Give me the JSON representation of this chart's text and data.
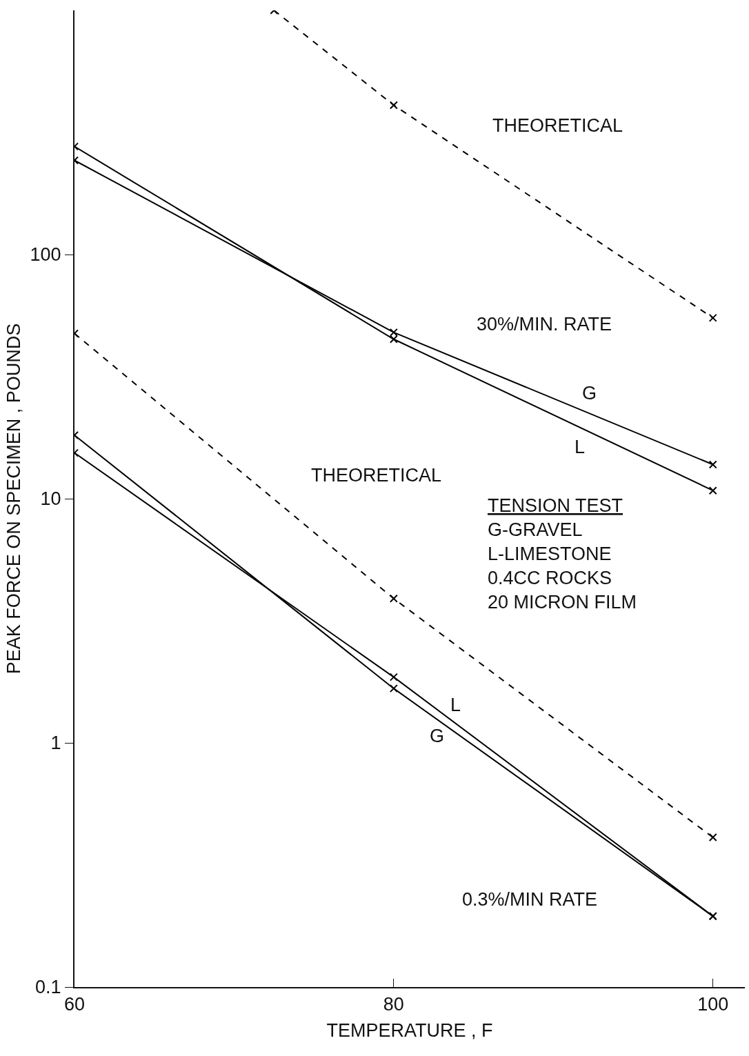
{
  "chart_data": {
    "type": "line",
    "xlabel": "TEMPERATURE , F",
    "ylabel": "PEAK FORCE ON SPECIMEN , POUNDS",
    "xlim": [
      60,
      102
    ],
    "xticks": [
      60,
      80,
      100
    ],
    "ylim": [
      0.1,
      1000
    ],
    "yticks": [
      {
        "value": 0.1,
        "label": "0.1"
      },
      1,
      10,
      100
    ],
    "log": "y",
    "grid": false,
    "marker": "cross",
    "series": [
      {
        "color": "#000000",
        "line_style": "dashed",
        "x": [
          72.5,
          80,
          100
        ],
        "values": [
          1000,
          409,
          55
        ]
      },
      {
        "color": "#000000",
        "line_style": "solid",
        "x": [
          60,
          80,
          100
        ],
        "values": [
          243,
          48,
          13.8
        ]
      },
      {
        "color": "#000000",
        "line_style": "solid",
        "x": [
          60,
          80,
          100
        ],
        "values": [
          277,
          45,
          10.8
        ]
      },
      {
        "color": "#000000",
        "line_style": "dashed",
        "x": [
          60,
          80,
          100
        ],
        "values": [
          47.5,
          3.9,
          0.41
        ]
      },
      {
        "color": "#000000",
        "line_style": "solid",
        "x": [
          60,
          80,
          100
        ],
        "values": [
          18.2,
          1.67,
          0.195
        ]
      },
      {
        "color": "#000000",
        "line_style": "solid",
        "x": [
          60,
          80,
          100
        ],
        "values": [
          15.4,
          1.86,
          0.195
        ]
      }
    ],
    "annotations": [
      "THEORETICAL",
      "30%/MIN. RATE",
      "G",
      "L",
      "THEORETICAL",
      "L",
      "G",
      "0.3%/MIN RATE",
      "TENSION TEST",
      "G-GRAVEL",
      "L-LIMESTONE",
      "0.4CC ROCKS",
      "20 MICRON FILM"
    ]
  }
}
